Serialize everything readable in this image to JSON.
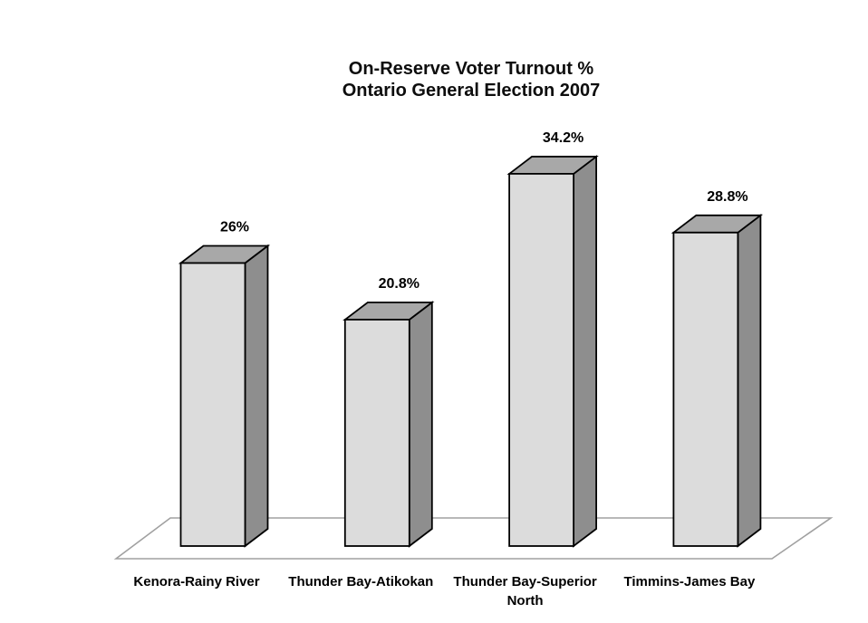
{
  "chart_data": {
    "type": "bar",
    "variant": "3d-column",
    "title": "On-Reserve Voter Turnout %",
    "subtitle": "Ontario General Election 2007",
    "categories": [
      "Kenora-Rainy River",
      "Thunder Bay-Atikokan",
      "Thunder Bay-Superior North",
      "Timmins-James Bay"
    ],
    "tick_label_lines": [
      [
        "Kenora-Rainy River"
      ],
      [
        "Thunder Bay-Atikokan"
      ],
      [
        "Thunder Bay-Superior",
        "North"
      ],
      [
        "Timmins-James Bay"
      ]
    ],
    "values": [
      26,
      20.8,
      34.2,
      28.8
    ],
    "data_labels": [
      "26%",
      "20.8%",
      "34.2%",
      "28.8%"
    ],
    "xlabel": "",
    "ylabel": "",
    "baseline": 0,
    "value_axis_visible": false,
    "gridlines": false,
    "legend": "none",
    "colors": {
      "background": "#ffffff",
      "bar_front": "#dcdcdc",
      "bar_top": "#a8a8a8",
      "bar_side": "#8e8e8e",
      "bar_outline": "#000000",
      "floor_line": "#a0a0a0",
      "text": "#000000"
    }
  }
}
